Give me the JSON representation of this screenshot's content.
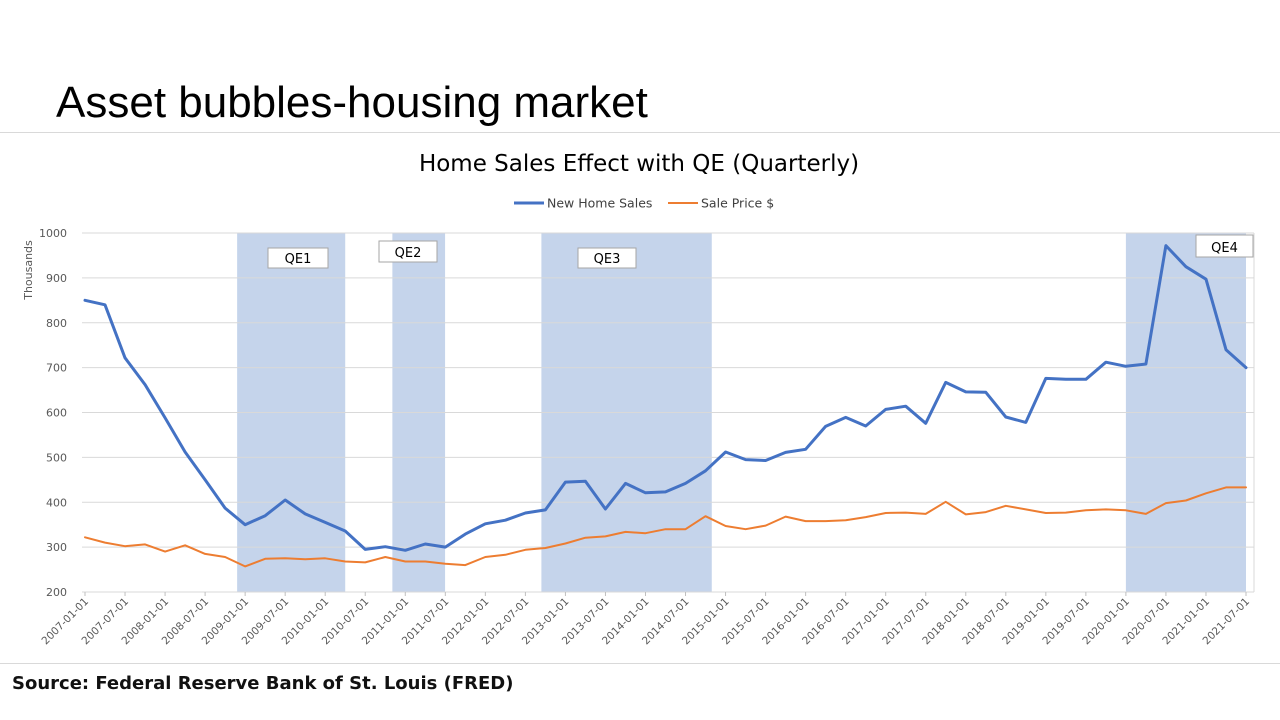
{
  "slide": {
    "title": "Asset bubbles-housing market",
    "source": "Source: Federal Reserve Bank of St. Louis (FRED)"
  },
  "chart_data": {
    "type": "line",
    "title": "Home Sales Effect with QE (Quarterly)",
    "ylabel": "Thousands",
    "xlabel": "",
    "ylim": [
      200,
      1000
    ],
    "yticks": [
      200,
      300,
      400,
      500,
      600,
      700,
      800,
      900,
      1000
    ],
    "grid": true,
    "legend_position": "top-center",
    "x": [
      "2007-01-01",
      "2007-04-01",
      "2007-07-01",
      "2007-10-01",
      "2008-01-01",
      "2008-04-01",
      "2008-07-01",
      "2008-10-01",
      "2009-01-01",
      "2009-04-01",
      "2009-07-01",
      "2009-10-01",
      "2010-01-01",
      "2010-04-01",
      "2010-07-01",
      "2010-10-01",
      "2011-01-01",
      "2011-04-01",
      "2011-07-01",
      "2011-10-01",
      "2012-01-01",
      "2012-04-01",
      "2012-07-01",
      "2012-10-01",
      "2013-01-01",
      "2013-04-01",
      "2013-07-01",
      "2013-10-01",
      "2014-01-01",
      "2014-04-01",
      "2014-07-01",
      "2014-10-01",
      "2015-01-01",
      "2015-04-01",
      "2015-07-01",
      "2015-10-01",
      "2016-01-01",
      "2016-04-01",
      "2016-07-01",
      "2016-10-01",
      "2017-01-01",
      "2017-04-01",
      "2017-07-01",
      "2017-10-01",
      "2018-01-01",
      "2018-04-01",
      "2018-07-01",
      "2018-10-01",
      "2019-01-01",
      "2019-04-01",
      "2019-07-01",
      "2019-10-01",
      "2020-01-01",
      "2020-04-01",
      "2020-07-01",
      "2020-10-01",
      "2021-01-01",
      "2021-04-01",
      "2021-07-01"
    ],
    "x_tick_labels": [
      "2007-01-01",
      "2007-07-01",
      "2008-01-01",
      "2008-07-01",
      "2009-01-01",
      "2009-07-01",
      "2010-01-01",
      "2010-07-01",
      "2011-01-01",
      "2011-07-01",
      "2012-01-01",
      "2012-07-01",
      "2013-01-01",
      "2013-07-01",
      "2014-01-01",
      "2014-07-01",
      "2015-01-01",
      "2015-07-01",
      "2016-01-01",
      "2016-07-01",
      "2017-01-01",
      "2017-07-01",
      "2018-01-01",
      "2018-07-01",
      "2019-01-01",
      "2019-07-01",
      "2020-01-01",
      "2020-07-01",
      "2021-01-01",
      "2021-07-01"
    ],
    "series": [
      {
        "name": "New Home Sales",
        "color": "#4472c4",
        "values": [
          850,
          840,
          722,
          662,
          588,
          512,
          450,
          387,
          350,
          370,
          405,
          374,
          355,
          336,
          295,
          301,
          293,
          307,
          300,
          329,
          352,
          360,
          376,
          383,
          445,
          447,
          385,
          442,
          421,
          423,
          442,
          470,
          512,
          495,
          493,
          511,
          518,
          569,
          589,
          570,
          607,
          614,
          576,
          667,
          646,
          645,
          590,
          578,
          676,
          674,
          674,
          712,
          703,
          708,
          972,
          925,
          897,
          740,
          700
        ]
      },
      {
        "name": "Sale Price $",
        "color": "#ed7d31",
        "values": [
          322,
          310,
          302,
          306,
          290,
          304,
          285,
          278,
          257,
          274,
          275,
          273,
          275,
          268,
          266,
          278,
          268,
          268,
          263,
          260,
          278,
          283,
          294,
          298,
          308,
          321,
          324,
          334,
          331,
          340,
          340,
          369,
          347,
          340,
          348,
          368,
          358,
          358,
          360,
          367,
          376,
          377,
          374,
          401,
          373,
          378,
          392,
          384,
          376,
          377,
          382,
          384,
          382,
          374,
          398,
          404,
          420,
          433,
          433
        ]
      }
    ],
    "shaded_regions": [
      {
        "label": "QE1",
        "start": "2008-11-25",
        "end": "2010-03-31"
      },
      {
        "label": "QE2",
        "start": "2010-11-03",
        "end": "2011-06-30"
      },
      {
        "label": "QE3",
        "start": "2012-09-13",
        "end": "2014-10-29"
      },
      {
        "label": "QE4",
        "start": "2020-01-01",
        "end": "2021-07-01"
      }
    ],
    "colors": {
      "shade": "#c5d4eb",
      "grid": "#d9d9d9",
      "axis_text": "#595959"
    }
  }
}
